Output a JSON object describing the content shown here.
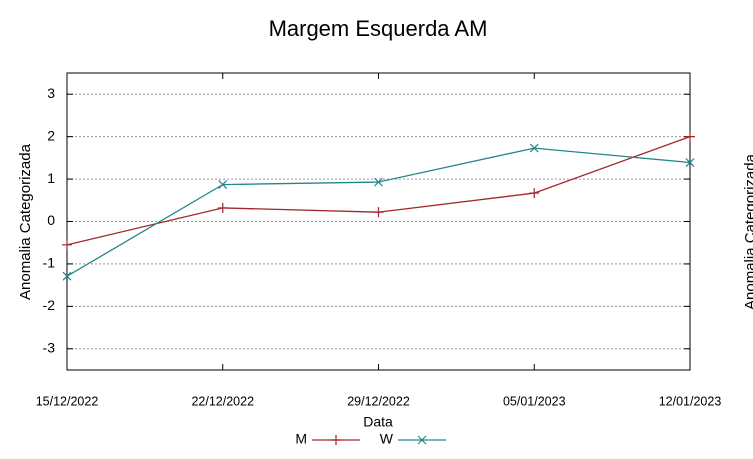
{
  "chart_data": {
    "type": "line",
    "title": "Margem Esquerda AM",
    "xlabel": "Data",
    "ylabel": "Anomalia Categorizada",
    "categories": [
      "15/12/2022",
      "22/12/2022",
      "29/12/2022",
      "05/01/2023",
      "12/01/2023"
    ],
    "series": [
      {
        "name": "M",
        "color": "#a3262c",
        "marker": "plus",
        "values": [
          -0.55,
          0.32,
          0.22,
          0.67,
          2.0
        ]
      },
      {
        "name": "W",
        "color": "#23868c",
        "marker": "cross",
        "values": [
          -1.29,
          0.87,
          0.93,
          1.73,
          1.39
        ]
      }
    ],
    "ylim": [
      -3.5,
      3.5
    ],
    "yticks": [
      -3,
      -2,
      -1,
      0,
      1,
      2,
      3
    ],
    "grid": true,
    "legend": "bottom"
  },
  "clipped_neighbor": {
    "ylabel": "Anomalia Categorizada"
  }
}
